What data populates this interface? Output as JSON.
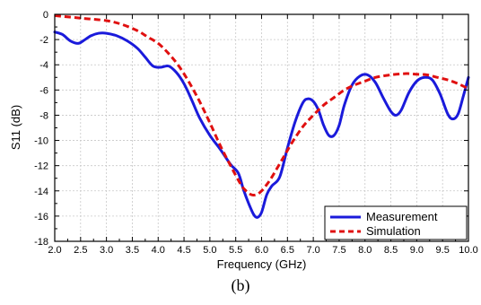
{
  "chart_data": {
    "type": "line",
    "xlabel": "Frequency (GHz)",
    "ylabel": "S11 (dB)",
    "panel_label": "(b)",
    "xlim": [
      2.0,
      10.0
    ],
    "ylim": [
      -18,
      0
    ],
    "x_ticks": [
      2.0,
      2.5,
      3.0,
      3.5,
      4.0,
      4.5,
      5.0,
      5.5,
      6.0,
      6.5,
      7.0,
      7.5,
      8.0,
      8.5,
      9.0,
      9.5,
      10.0
    ],
    "x_tick_labels": [
      "2.0",
      "2.5",
      "3.0",
      "3.5",
      "4.0",
      "4.5",
      "5.0",
      "5.5",
      "6.0",
      "6.5",
      "7.0",
      "7.5",
      "8.0",
      "8.5",
      "9.0",
      "9.5",
      "10.0"
    ],
    "y_ticks": [
      0,
      -2,
      -4,
      -6,
      -8,
      -10,
      -12,
      -14,
      -16,
      -18
    ],
    "y_tick_labels": [
      "0",
      "-2",
      "-4",
      "-6",
      "-8",
      "-10",
      "-12",
      "-14",
      "-16",
      "-18"
    ],
    "grid": true,
    "legend": "bottom-right",
    "series": [
      {
        "name": "Measurement",
        "color": "#1a1adb",
        "dash": "solid",
        "x": [
          2.0,
          2.15,
          2.3,
          2.45,
          2.55,
          2.7,
          2.85,
          3.0,
          3.2,
          3.4,
          3.6,
          3.75,
          3.9,
          4.05,
          4.2,
          4.35,
          4.5,
          4.65,
          4.8,
          5.0,
          5.2,
          5.4,
          5.55,
          5.65,
          5.75,
          5.85,
          5.92,
          6.0,
          6.1,
          6.2,
          6.35,
          6.5,
          6.65,
          6.8,
          6.9,
          7.0,
          7.1,
          7.2,
          7.3,
          7.4,
          7.5,
          7.6,
          7.75,
          7.9,
          8.05,
          8.2,
          8.35,
          8.5,
          8.6,
          8.7,
          8.85,
          9.0,
          9.15,
          9.3,
          9.45,
          9.6,
          9.7,
          9.8,
          9.9,
          10.0
        ],
        "y": [
          -1.4,
          -1.6,
          -2.1,
          -2.3,
          -2.1,
          -1.7,
          -1.5,
          -1.5,
          -1.7,
          -2.1,
          -2.7,
          -3.4,
          -4.1,
          -4.2,
          -4.1,
          -4.6,
          -5.5,
          -6.8,
          -8.2,
          -9.6,
          -10.7,
          -11.9,
          -12.6,
          -13.9,
          -15.0,
          -15.9,
          -16.1,
          -15.7,
          -14.3,
          -13.6,
          -12.9,
          -10.6,
          -8.5,
          -7.0,
          -6.7,
          -6.9,
          -7.6,
          -8.8,
          -9.6,
          -9.6,
          -8.8,
          -7.2,
          -5.6,
          -4.9,
          -4.8,
          -5.4,
          -6.6,
          -7.7,
          -8.0,
          -7.6,
          -6.2,
          -5.3,
          -5.0,
          -5.2,
          -6.3,
          -7.9,
          -8.3,
          -7.9,
          -6.5,
          -5.0
        ]
      },
      {
        "name": "Simulation",
        "color": "#e01010",
        "dash": "dashed",
        "x": [
          2.0,
          2.5,
          3.0,
          3.3,
          3.6,
          3.8,
          4.0,
          4.2,
          4.4,
          4.6,
          4.8,
          5.0,
          5.2,
          5.4,
          5.6,
          5.7,
          5.8,
          5.9,
          6.0,
          6.1,
          6.2,
          6.4,
          6.6,
          6.8,
          7.0,
          7.2,
          7.4,
          7.6,
          7.8,
          8.0,
          8.2,
          8.5,
          8.8,
          9.0,
          9.2,
          9.4,
          9.6,
          9.8,
          10.0
        ],
        "y": [
          -0.1,
          -0.3,
          -0.5,
          -0.8,
          -1.3,
          -1.8,
          -2.3,
          -3.1,
          -4.1,
          -5.4,
          -6.9,
          -8.6,
          -10.4,
          -12.0,
          -13.5,
          -14.0,
          -14.3,
          -14.3,
          -14.0,
          -13.5,
          -12.9,
          -11.5,
          -10.1,
          -8.9,
          -8.0,
          -7.2,
          -6.6,
          -6.0,
          -5.6,
          -5.3,
          -5.0,
          -4.8,
          -4.7,
          -4.75,
          -4.8,
          -5.0,
          -5.2,
          -5.5,
          -5.9
        ]
      }
    ]
  }
}
